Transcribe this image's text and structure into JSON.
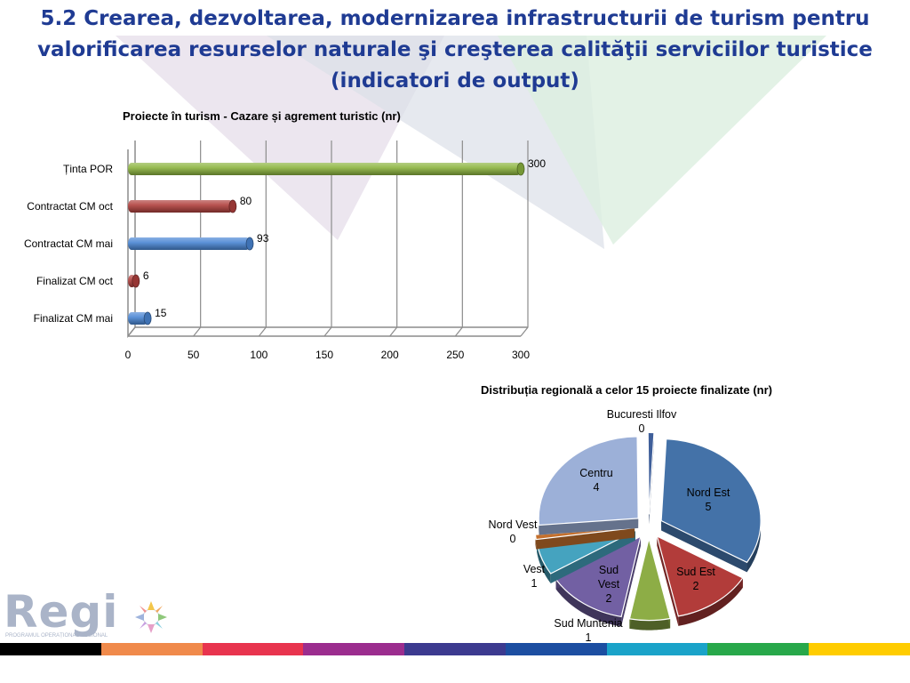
{
  "slide": {
    "title": "5.2 Crearea, dezvoltarea, modernizarea infrastructurii de turism pentru valorificarea resurselor naturale şi creşterea calităţii serviciilor turistice (indicatori de output)"
  },
  "logo": {
    "text": "Regi",
    "subtitle": "PROGRAMUL OPERAȚIONAL REGIONAL"
  },
  "footer_colors": [
    "#000000",
    "#f08a4b",
    "#e8344e",
    "#9b2d8e",
    "#3c3a8f",
    "#1c4ea1",
    "#1aa3c9",
    "#28a84a",
    "#ffcc00"
  ],
  "chart_data": [
    {
      "type": "bar",
      "orientation": "horizontal",
      "title": "Proiecte în turism - Cazare și agrement turistic (nr)",
      "categories": [
        "Ținta POR",
        "Contractat CM oct",
        "Contractat CM mai",
        "Finalizat CM oct",
        "Finalizat CM mai"
      ],
      "values": [
        300,
        80,
        93,
        6,
        15
      ],
      "colors": [
        "#8bb33f",
        "#b0403d",
        "#4a86d4",
        "#b0403d",
        "#4a86d4"
      ],
      "xlim": [
        0,
        300
      ],
      "xticks": [
        0,
        50,
        100,
        150,
        200,
        250,
        300
      ],
      "grid": true,
      "legend": "none"
    },
    {
      "type": "pie",
      "title": "Distribuția regională a celor 15 proiecte finalizate (nr)",
      "slices": [
        {
          "name": "Nord Est",
          "value": 5,
          "color": "#4472a8",
          "label_inside": true
        },
        {
          "name": "Sud Est",
          "value": 2,
          "color": "#b23c3a",
          "label_inside": true
        },
        {
          "name": "Sud Muntenia",
          "value": 1,
          "color": "#8dad46",
          "label_inside": false
        },
        {
          "name": "Sud Vest",
          "value": 2,
          "color": "#7260a3",
          "label_inside": true
        },
        {
          "name": "Vest",
          "value": 1,
          "color": "#45a3bf",
          "label_inside": false
        },
        {
          "name": "Nord Vest",
          "value": 0,
          "color": "#c4702d",
          "label_inside": false
        },
        {
          "name": "Centru",
          "value": 4,
          "color": "#9cb0d8",
          "label_inside": true
        },
        {
          "name": "Bucuresti Ilfov",
          "value": 0,
          "color": "#3f5f9a",
          "label_inside": false
        }
      ],
      "legend": "none"
    }
  ]
}
